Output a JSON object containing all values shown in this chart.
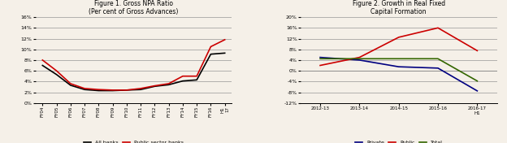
{
  "fig1": {
    "title": "Figure 1. Gross NPA Ratio",
    "subtitle": "(Per cent of Gross Advances)",
    "x_labels": [
      "FY04",
      "FY05",
      "FY06",
      "FY07",
      "FY08",
      "FY09",
      "FY10",
      "FY11",
      "FY12",
      "FY13",
      "FY14",
      "FY15",
      "FY16",
      "H1\n17"
    ],
    "all_banks": [
      7.0,
      5.3,
      3.3,
      2.5,
      2.3,
      2.3,
      2.4,
      2.5,
      3.1,
      3.4,
      4.1,
      4.3,
      9.1,
      9.3
    ],
    "public_banks": [
      8.0,
      6.0,
      3.6,
      2.7,
      2.5,
      2.4,
      2.4,
      2.7,
      3.2,
      3.6,
      5.0,
      5.0,
      10.5,
      11.8
    ],
    "ylim": [
      0,
      16
    ],
    "yticks": [
      0,
      2,
      4,
      6,
      8,
      10,
      12,
      14,
      16
    ],
    "ytick_labels": [
      "0%",
      "2%",
      "4%",
      "6%",
      "8%",
      "10%",
      "12%",
      "14%",
      "16%"
    ],
    "legend_all": "All banks",
    "legend_public": "Public sector banks",
    "all_color": "#000000",
    "public_color": "#cc0000",
    "bg_color": "#f5f0e8"
  },
  "fig2": {
    "title": "Figure 2. Growth in Real Fixed",
    "subtitle": "Capital Formation",
    "x_labels": [
      "2012-13",
      "2013-14",
      "2014-15",
      "2015-16",
      "2016-17\nH1"
    ],
    "private": [
      5.0,
      4.0,
      1.5,
      1.0,
      -7.5
    ],
    "public": [
      2.0,
      5.0,
      12.5,
      16.0,
      7.5
    ],
    "total": [
      4.5,
      4.5,
      4.5,
      4.5,
      -3.8
    ],
    "ylim": [
      -12,
      20
    ],
    "yticks": [
      -12,
      -8,
      -4,
      0,
      4,
      8,
      12,
      16,
      20
    ],
    "ytick_labels": [
      "-12%",
      "-8%",
      "-4%",
      "0%",
      "4%",
      "8%",
      "12%",
      "16%",
      "20%"
    ],
    "legend_private": "Private",
    "legend_public": "Public",
    "legend_total": "Total",
    "private_color": "#000080",
    "public_color": "#cc0000",
    "total_color": "#336600",
    "bg_color": "#f5f0e8"
  }
}
